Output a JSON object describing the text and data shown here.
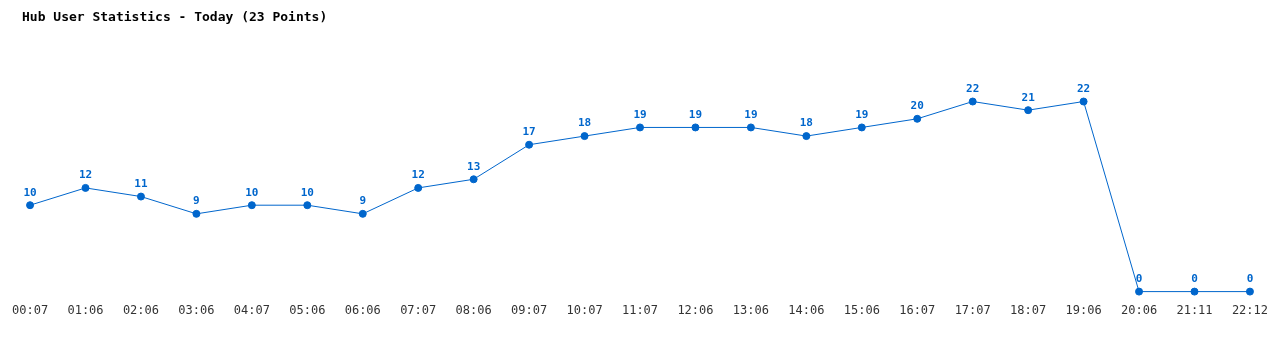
{
  "chart_data": {
    "type": "line",
    "title": "Hub User Statistics - Today (23 Points)",
    "categories": [
      "00:07",
      "01:06",
      "02:06",
      "03:06",
      "04:07",
      "05:06",
      "06:06",
      "07:07",
      "08:06",
      "09:07",
      "10:07",
      "11:07",
      "12:06",
      "13:06",
      "14:06",
      "15:06",
      "16:07",
      "17:07",
      "18:07",
      "19:06",
      "20:06",
      "21:11",
      "22:12"
    ],
    "series": [
      {
        "color": "#0066cc",
        "values": [
          10,
          12,
          11,
          9,
          10,
          10,
          9,
          12,
          13,
          17,
          18,
          19,
          19,
          19,
          18,
          19,
          20,
          22,
          21,
          22,
          0,
          0,
          0
        ]
      }
    ],
    "data_labels": true,
    "grid": false,
    "legend": false,
    "marker": "circle",
    "line_style": "solid",
    "tick_labels": "x"
  }
}
